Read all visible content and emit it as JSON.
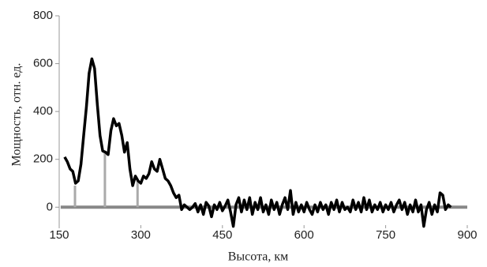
{
  "chart_data": {
    "type": "line",
    "xlabel": "Высота, км",
    "ylabel": "Мощность, отн. ед.",
    "xlim": [
      150,
      900
    ],
    "xticks": [
      150,
      300,
      450,
      600,
      750,
      900
    ],
    "ylim": [
      -75,
      800
    ],
    "yticks": [
      0,
      200,
      400,
      600,
      800
    ],
    "reference_line": {
      "y": 0,
      "color": "#888888"
    },
    "markers": {
      "color": "#aaaaaa",
      "x": [
        179,
        234,
        294
      ],
      "values": [
        90,
        230,
        110
      ]
    },
    "series": [
      {
        "color": "#000000",
        "x": [
          160,
          165,
          170,
          175,
          180,
          185,
          190,
          195,
          200,
          205,
          210,
          215,
          220,
          225,
          230,
          235,
          240,
          245,
          250,
          255,
          260,
          265,
          270,
          275,
          280,
          285,
          290,
          295,
          300,
          305,
          310,
          315,
          320,
          325,
          330,
          335,
          340,
          345,
          350,
          355,
          360,
          365,
          370,
          375,
          380,
          385,
          390,
          395,
          400,
          405,
          410,
          415,
          420,
          425,
          430,
          435,
          440,
          445,
          450,
          455,
          460,
          465,
          470,
          475,
          480,
          485,
          490,
          495,
          500,
          505,
          510,
          515,
          520,
          525,
          530,
          535,
          540,
          545,
          550,
          555,
          560,
          565,
          570,
          575,
          580,
          585,
          590,
          595,
          600,
          605,
          610,
          615,
          620,
          625,
          630,
          635,
          640,
          645,
          650,
          655,
          660,
          665,
          670,
          675,
          680,
          685,
          690,
          695,
          700,
          705,
          710,
          715,
          720,
          725,
          730,
          735,
          740,
          745,
          750,
          755,
          760,
          765,
          770,
          775,
          780,
          785,
          790,
          795,
          800,
          805,
          810,
          815,
          820,
          825,
          830,
          835,
          840,
          845,
          850,
          855,
          860,
          865,
          870
        ],
        "values": [
          210,
          190,
          160,
          150,
          100,
          110,
          180,
          300,
          420,
          560,
          620,
          580,
          430,
          300,
          235,
          230,
          220,
          320,
          370,
          340,
          350,
          300,
          230,
          270,
          160,
          90,
          130,
          110,
          100,
          130,
          120,
          140,
          190,
          160,
          150,
          200,
          160,
          120,
          110,
          90,
          60,
          40,
          50,
          -10,
          10,
          0,
          -10,
          0,
          15,
          -20,
          10,
          -30,
          20,
          5,
          -40,
          10,
          -10,
          20,
          -15,
          5,
          30,
          -20,
          -80,
          10,
          40,
          -20,
          30,
          -10,
          40,
          -30,
          20,
          -10,
          40,
          -20,
          10,
          -30,
          30,
          -10,
          20,
          -30,
          10,
          40,
          -10,
          70,
          -30,
          20,
          -20,
          10,
          -20,
          20,
          -10,
          -30,
          10,
          -20,
          20,
          -10,
          10,
          -30,
          20,
          -10,
          30,
          -20,
          20,
          -10,
          0,
          -20,
          30,
          -10,
          20,
          -20,
          40,
          -10,
          30,
          -20,
          10,
          -10,
          20,
          -20,
          10,
          -10,
          20,
          -20,
          10,
          30,
          -10,
          20,
          -30,
          10,
          -20,
          30,
          -20,
          10,
          -80,
          -10,
          20,
          -30,
          10,
          -20,
          60,
          50,
          -10,
          10,
          0
        ]
      }
    ]
  }
}
